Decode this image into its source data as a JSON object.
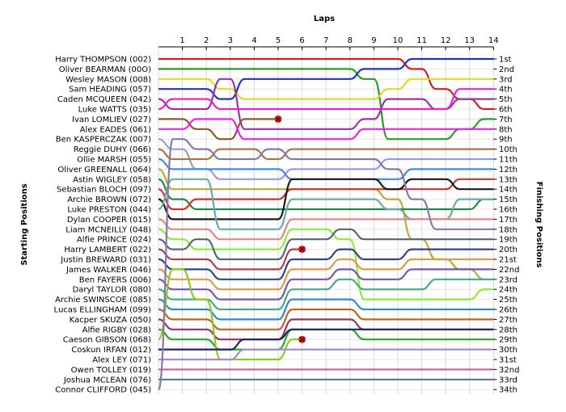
{
  "chart_data": {
    "type": "line",
    "title": "",
    "xlabel": "Laps",
    "ylabel_left": "Starting Positions",
    "ylabel_right": "Finishing Positions",
    "x": [
      1,
      2,
      3,
      4,
      5,
      6,
      7,
      8,
      9,
      10,
      11,
      12,
      13,
      14
    ],
    "x_ticks": [
      "1",
      "2",
      "3",
      "4",
      "5",
      "6",
      "7",
      "8",
      "9",
      "10",
      "11",
      "12",
      "13",
      "14"
    ],
    "ylim": [
      1,
      34
    ],
    "grid": true,
    "starting_labels": [
      "Harry THOMPSON (002)",
      "Oliver BEARMAN (00O)",
      "Wesley MASON (008)",
      "Sam HEADING (057)",
      "Caden MCQUEEN (042)",
      "Luke WATTS (035)",
      "Ivan LOMLIEV (027)",
      "Alex EADES (061)",
      "Ben KASPERCZAK (007)",
      "Reggie DUHY (066)",
      "Ollie MARSH (055)",
      "Oliver GREENALL (064)",
      "Astin WIGLEY (058)",
      "Sebastian BLOCH (097)",
      "Archie BROWN (072)",
      "Luke PRESTON (044)",
      "Dylan COOPER (015)",
      "Liam MCNEILLY (048)",
      "Alfie PRINCE (024)",
      "Harry LAMBERT (022)",
      "Justin BREWARD (031)",
      "James WALKER (046)",
      "Ben FAYERS (006)",
      "Daryl TAYLOR (080)",
      "Archie SWINSCOE (085)",
      "Lucas ELLINGHAM (099)",
      "Kacper SKUZA (050)",
      "Alfie RIGBY (028)",
      "Caeson GIBSON (068)",
      "Coskun IRFAN (012)",
      "Alex LEY (071)",
      "Owen TOLLEY (019)",
      "Joshua MCLEAN (076)",
      "Connor CLIFFORD (045)"
    ],
    "finishing_labels": [
      "1st",
      "2nd",
      "3rd",
      "4th",
      "5th",
      "6th",
      "7th",
      "8th",
      "9th",
      "10th",
      "11th",
      "12th",
      "13th",
      "14th",
      "15th",
      "16th",
      "17th",
      "18th",
      "19th",
      "20th",
      "21st",
      "22nd",
      "23rd",
      "24th",
      "25th",
      "26th",
      "27th",
      "28th",
      "29th",
      "30th",
      "31st",
      "32nd",
      "33rd",
      "34th"
    ],
    "series": [
      {
        "color": "#cc2222",
        "start": 1,
        "laps": [
          1,
          1,
          1,
          1,
          1,
          1,
          1,
          1,
          1,
          1,
          2,
          4,
          5,
          6
        ]
      },
      {
        "color": "#2a9a2a",
        "start": 2,
        "laps": [
          2,
          2,
          2,
          2,
          2,
          2,
          2,
          2,
          3,
          9,
          9,
          9,
          8,
          7
        ]
      },
      {
        "color": "#dddd22",
        "start": 3,
        "laps": [
          3,
          3,
          4,
          5,
          5,
          5,
          5,
          5,
          5,
          4,
          3,
          3,
          3,
          3
        ]
      },
      {
        "color": "#2233bb",
        "start": 4,
        "laps": [
          4,
          4,
          5,
          3,
          3,
          3,
          3,
          3,
          2,
          2,
          1,
          1,
          1,
          1
        ]
      },
      {
        "color": "#9933aa",
        "start": 5,
        "laps": [
          6,
          6,
          3,
          8,
          8,
          8,
          8,
          8,
          7,
          5,
          5,
          6,
          5,
          5
        ]
      },
      {
        "color": "#ee22cc",
        "start": 6,
        "laps": [
          5,
          5,
          6,
          6,
          6,
          6,
          6,
          6,
          6,
          6,
          6,
          6,
          4,
          4
        ]
      },
      {
        "color": "#8b5a2b",
        "start": 7,
        "laps": [
          7,
          8,
          9,
          7,
          7
        ],
        "retired_after": 5
      },
      {
        "color": "#ee22ee",
        "start": 8,
        "laps": [
          8,
          7,
          7,
          9,
          9,
          9,
          9,
          9,
          8,
          8,
          8,
          8,
          8,
          8
        ]
      },
      {
        "color": "#9999dd",
        "start": 9,
        "laps": [
          10,
          12,
          13,
          13,
          13,
          12,
          12,
          12,
          12,
          11,
          11,
          11,
          11,
          11
        ]
      },
      {
        "color": "#aa7744",
        "start": 10,
        "laps": [
          11,
          11,
          10,
          10,
          11,
          10,
          10,
          10,
          10,
          10,
          10,
          10,
          10,
          10
        ]
      },
      {
        "color": "#4488dd",
        "start": 11,
        "laps": [
          12,
          12,
          12,
          12,
          12,
          13,
          13,
          13,
          13,
          13,
          12,
          12,
          12,
          12
        ]
      },
      {
        "color": "#bbaa33",
        "start": 12,
        "laps": [
          14,
          14,
          14,
          14,
          14,
          14,
          14,
          14,
          14,
          15,
          19,
          21,
          22,
          23
        ]
      },
      {
        "color": "#228844",
        "start": 13,
        "laps": [
          15,
          16,
          16,
          16,
          16,
          16,
          16,
          16,
          16,
          16,
          16,
          16,
          16,
          15
        ]
      },
      {
        "color": "#cc3333",
        "start": 14,
        "laps": [
          16,
          15,
          15,
          15,
          15,
          14,
          14,
          14,
          14,
          14,
          14,
          14,
          13,
          13
        ]
      },
      {
        "color": "#1a1a1a",
        "start": 15,
        "laps": [
          17,
          17,
          17,
          17,
          17,
          13,
          13,
          13,
          13,
          14,
          13,
          13,
          14,
          14
        ]
      },
      {
        "color": "#66aaaa",
        "start": 16,
        "laps": [
          13,
          13,
          18,
          18,
          18,
          15,
          15,
          15,
          15,
          16,
          17,
          17,
          15,
          15
        ]
      },
      {
        "color": "#dd8888",
        "start": 17,
        "laps": [
          18,
          18,
          19,
          19,
          19,
          17,
          17,
          17,
          17,
          17,
          17,
          17,
          17,
          17
        ]
      },
      {
        "color": "#88ee33",
        "start": 18,
        "laps": [
          19,
          20,
          20,
          20,
          20,
          18,
          18,
          19,
          25,
          25,
          25,
          25,
          25,
          24
        ]
      },
      {
        "color": "#556677",
        "start": 19,
        "laps": [
          20,
          19,
          21,
          21,
          21,
          19,
          19,
          18,
          19,
          19,
          19,
          19,
          19,
          19
        ]
      },
      {
        "color": "#aa4444",
        "start": 20,
        "laps": [
          21,
          21,
          22,
          22,
          22,
          20
        ],
        "retired_after": 6
      },
      {
        "color": "#334488",
        "start": 21,
        "laps": [
          22,
          22,
          23,
          23,
          23,
          21,
          21,
          20,
          21,
          21,
          20,
          20,
          20,
          20
        ]
      },
      {
        "color": "#dd9944",
        "start": 22,
        "laps": [
          23,
          23,
          24,
          24,
          24,
          22,
          22,
          21,
          22,
          22,
          21,
          21,
          21,
          21
        ]
      },
      {
        "color": "#7755aa",
        "start": 23,
        "laps": [
          24,
          24,
          25,
          25,
          25,
          23,
          23,
          22,
          23,
          23,
          22,
          22,
          22,
          22
        ]
      },
      {
        "color": "#44aa88",
        "start": 24,
        "laps": [
          25,
          25,
          26,
          26,
          26,
          24,
          24,
          23,
          24,
          24,
          24,
          23,
          23,
          23
        ]
      },
      {
        "color": "#3388cc",
        "start": 25,
        "laps": [
          26,
          26,
          27,
          27,
          27,
          25,
          25,
          25,
          26,
          26,
          26,
          26,
          26,
          26
        ]
      },
      {
        "color": "#bb6622",
        "start": 26,
        "laps": [
          27,
          27,
          28,
          28,
          28,
          26,
          26,
          26,
          27,
          27,
          27,
          27,
          27,
          27
        ]
      },
      {
        "color": "#993366",
        "start": 27,
        "laps": [
          28,
          28,
          29,
          29,
          29,
          27,
          27,
          27,
          28,
          28,
          28,
          28,
          28,
          28
        ]
      },
      {
        "color": "#22aa22",
        "start": 28,
        "laps": [
          29,
          29,
          30,
          30,
          30,
          28,
          28,
          28,
          29,
          29,
          29,
          29,
          29,
          29
        ]
      },
      {
        "color": "#88cc22",
        "start": 29,
        "laps": [
          22,
          25,
          31,
          31,
          31,
          29
        ],
        "retired_after": 6
      },
      {
        "color": "#222266",
        "start": 30,
        "laps": [
          30,
          30,
          30,
          29,
          29,
          28,
          28,
          28,
          28,
          28,
          28,
          28,
          28,
          28
        ]
      },
      {
        "color": "#aa88cc",
        "start": 31,
        "laps": [
          31,
          31,
          31,
          30,
          30,
          30,
          30,
          30,
          30,
          30,
          30,
          30,
          30,
          30
        ]
      },
      {
        "color": "#cc66aa",
        "start": 32,
        "laps": [
          32,
          32,
          32,
          32,
          32,
          32,
          32,
          32,
          32,
          32,
          32,
          32,
          32,
          32
        ]
      },
      {
        "color": "#557799",
        "start": 33,
        "laps": [
          33,
          33,
          33,
          33,
          33,
          33,
          33,
          33,
          33,
          33,
          33,
          33,
          33,
          33
        ]
      },
      {
        "color": "#8877aa",
        "start": 34,
        "laps": [
          9,
          10,
          11,
          11,
          10,
          11,
          11,
          11,
          11,
          12,
          15,
          18,
          18,
          18
        ]
      }
    ]
  }
}
